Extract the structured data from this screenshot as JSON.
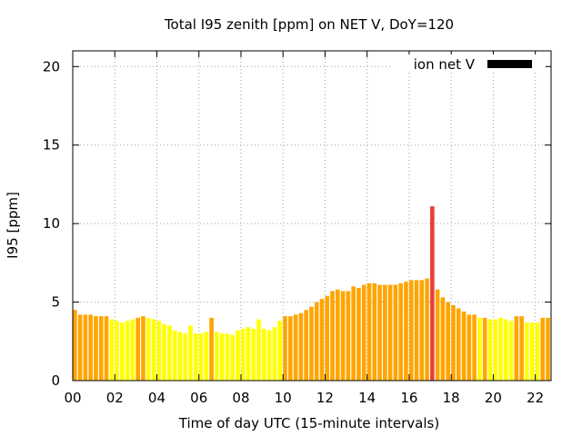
{
  "chart_data": {
    "type": "bar",
    "title": "Total I95 zenith [ppm] on NET V, DoY=120",
    "xlabel": "Time of day UTC (15-minute intervals)",
    "ylabel": "I95 [ppm]",
    "legend": {
      "label": "ion net V",
      "color": "#000000",
      "position": "top-right"
    },
    "xlim": [
      0,
      22.75
    ],
    "ylim": [
      0,
      21
    ],
    "x_ticks": [
      "00",
      "02",
      "04",
      "06",
      "08",
      "10",
      "12",
      "14",
      "16",
      "18",
      "20",
      "22"
    ],
    "y_ticks": [
      "0",
      "5",
      "10",
      "15",
      "20"
    ],
    "grid": true,
    "bar_interval_hours": 0.25,
    "bar_start_hour": 0,
    "colors": {
      "low": "#ffff00",
      "mid": "#ffa500",
      "high": "#e8403a"
    },
    "values": [
      4.5,
      4.2,
      4.2,
      4.2,
      4.1,
      4.1,
      4.1,
      3.9,
      3.8,
      3.7,
      3.8,
      3.9,
      4.0,
      4.1,
      4.0,
      3.9,
      3.8,
      3.6,
      3.5,
      3.2,
      3.1,
      3.0,
      3.5,
      3.0,
      3.0,
      3.1,
      4.0,
      3.1,
      3.0,
      3.0,
      2.9,
      3.2,
      3.3,
      3.4,
      3.3,
      3.9,
      3.3,
      3.2,
      3.4,
      3.8,
      4.1,
      4.1,
      4.2,
      4.3,
      4.5,
      4.7,
      5.0,
      5.2,
      5.4,
      5.7,
      5.8,
      5.7,
      5.7,
      6.0,
      5.9,
      6.1,
      6.2,
      6.2,
      6.1,
      6.1,
      6.1,
      6.1,
      6.2,
      6.3,
      6.4,
      6.4,
      6.4,
      6.5,
      11.1,
      5.8,
      5.3,
      5.0,
      4.8,
      4.6,
      4.4,
      4.2,
      4.2,
      4.0,
      4.0,
      3.9,
      3.9,
      4.0,
      3.9,
      3.8,
      4.1,
      4.1,
      3.7,
      3.7,
      3.7,
      4.0,
      4.0
    ],
    "categories": [
      2,
      2,
      2,
      2,
      2,
      2,
      2,
      1,
      1,
      1,
      1,
      1,
      2,
      2,
      1,
      1,
      1,
      1,
      1,
      1,
      1,
      1,
      1,
      1,
      1,
      1,
      2,
      1,
      1,
      1,
      1,
      1,
      1,
      1,
      1,
      1,
      1,
      1,
      1,
      1,
      2,
      2,
      2,
      2,
      2,
      2,
      2,
      2,
      2,
      2,
      2,
      2,
      2,
      2,
      2,
      2,
      2,
      2,
      2,
      2,
      2,
      2,
      2,
      2,
      2,
      2,
      2,
      2,
      3,
      2,
      2,
      2,
      2,
      2,
      2,
      2,
      2,
      1,
      2,
      1,
      1,
      1,
      1,
      1,
      2,
      2,
      1,
      1,
      1,
      2,
      2
    ]
  }
}
